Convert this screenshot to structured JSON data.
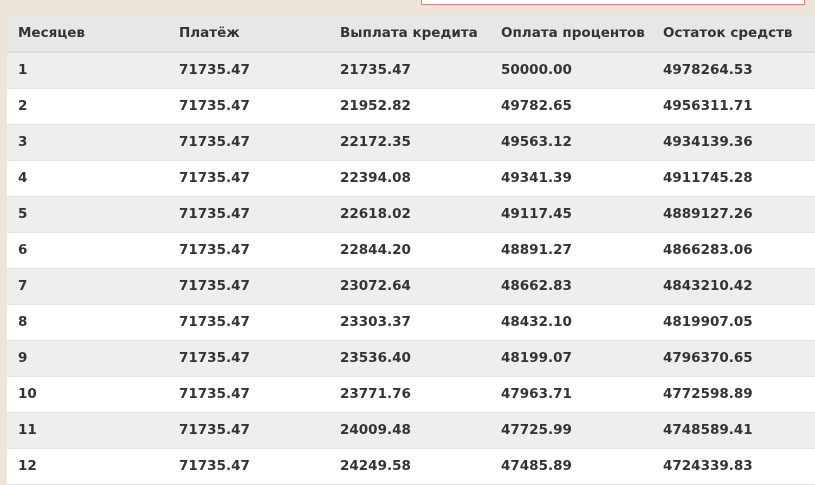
{
  "table": {
    "headers": [
      "Месяцев",
      "Платёж",
      "Выплата кредита",
      "Оплата процентов",
      "Остаток средств"
    ],
    "rows": [
      [
        "1",
        "71735.47",
        "21735.47",
        "50000.00",
        "4978264.53"
      ],
      [
        "2",
        "71735.47",
        "21952.82",
        "49782.65",
        "4956311.71"
      ],
      [
        "3",
        "71735.47",
        "22172.35",
        "49563.12",
        "4934139.36"
      ],
      [
        "4",
        "71735.47",
        "22394.08",
        "49341.39",
        "4911745.28"
      ],
      [
        "5",
        "71735.47",
        "22618.02",
        "49117.45",
        "4889127.26"
      ],
      [
        "6",
        "71735.47",
        "22844.20",
        "48891.27",
        "4866283.06"
      ],
      [
        "7",
        "71735.47",
        "23072.64",
        "48662.83",
        "4843210.42"
      ],
      [
        "8",
        "71735.47",
        "23303.37",
        "48432.10",
        "4819907.05"
      ],
      [
        "9",
        "71735.47",
        "23536.40",
        "48199.07",
        "4796370.65"
      ],
      [
        "10",
        "71735.47",
        "23771.76",
        "47963.71",
        "4772598.89"
      ],
      [
        "11",
        "71735.47",
        "24009.48",
        "47725.99",
        "4748589.41"
      ],
      [
        "12",
        "71735.47",
        "24249.58",
        "47485.89",
        "4724339.83"
      ]
    ]
  }
}
